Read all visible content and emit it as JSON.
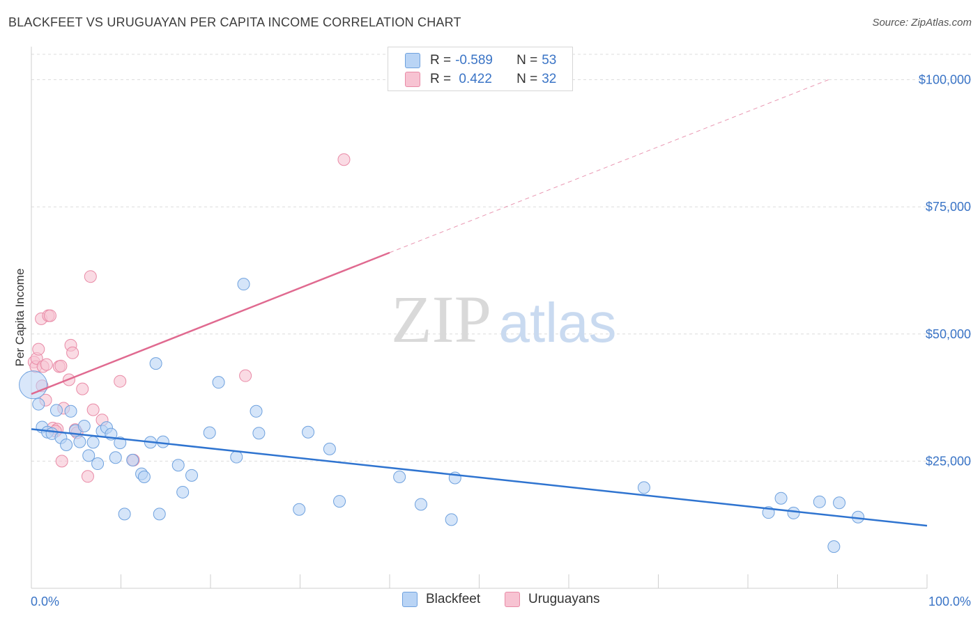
{
  "title": "BLACKFEET VS URUGUAYAN PER CAPITA INCOME CORRELATION CHART",
  "source": "Source: ZipAtlas.com",
  "watermark": {
    "zip": "ZIP",
    "atlas": "atlas"
  },
  "colors": {
    "blue_fill": "#b9d4f5",
    "blue_stroke": "#6ea1de",
    "blue_line": "#2f74d0",
    "pink_fill": "#f7c3d2",
    "pink_stroke": "#e98aa6",
    "pink_line": "#e06a90",
    "axis_text": "#3a74c6",
    "grid": "#dcdcdc"
  },
  "legend": {
    "rows": [
      {
        "r_label": "R = ",
        "r_value": "-0.589",
        "n_label": "N = ",
        "n_value": "53"
      },
      {
        "r_label": "R = ",
        "r_value": " 0.422",
        "n_label": "N = ",
        "n_value": "32"
      }
    ]
  },
  "bottom_legend": {
    "blackfeet": "Blackfeet",
    "uruguayans": "Uruguayans"
  },
  "chart_data": {
    "type": "scatter",
    "title": "BLACKFEET VS URUGUAYAN PER CAPITA INCOME CORRELATION CHART",
    "xlabel": "",
    "ylabel": "Per Capita Income",
    "xlim": [
      0,
      100
    ],
    "ylim": [
      0,
      105000
    ],
    "x_tick_labels": [
      "0.0%",
      "100.0%"
    ],
    "y_ticks": [
      25000,
      50000,
      75000,
      100000
    ],
    "y_tick_labels": [
      "$25,000",
      "$50,000",
      "$75,000",
      "$100,000"
    ],
    "grid": true,
    "legend_position": "top-center",
    "series": [
      {
        "name": "Blackfeet",
        "r": -0.589,
        "n": 53,
        "trend": {
          "x": [
            0,
            100
          ],
          "y": [
            31300,
            12300
          ]
        },
        "points": [
          [
            0.2,
            40000
          ],
          [
            0.8,
            36200
          ],
          [
            1.2,
            31700
          ],
          [
            1.8,
            30700
          ],
          [
            2.3,
            30400
          ],
          [
            2.8,
            35000
          ],
          [
            3.3,
            29600
          ],
          [
            3.9,
            28200
          ],
          [
            4.4,
            34800
          ],
          [
            4.9,
            31000
          ],
          [
            5.4,
            28800
          ],
          [
            5.9,
            31900
          ],
          [
            6.4,
            26100
          ],
          [
            6.9,
            28700
          ],
          [
            7.4,
            24500
          ],
          [
            7.9,
            30900
          ],
          [
            8.4,
            31600
          ],
          [
            8.9,
            30300
          ],
          [
            9.4,
            25700
          ],
          [
            9.9,
            28600
          ],
          [
            10.4,
            14600
          ],
          [
            11.3,
            25200
          ],
          [
            12.3,
            22500
          ],
          [
            12.6,
            21900
          ],
          [
            13.3,
            28700
          ],
          [
            13.9,
            44200
          ],
          [
            14.3,
            14600
          ],
          [
            14.7,
            28800
          ],
          [
            16.4,
            24200
          ],
          [
            16.9,
            18900
          ],
          [
            17.9,
            22200
          ],
          [
            19.9,
            30600
          ],
          [
            20.9,
            40500
          ],
          [
            22.9,
            25800
          ],
          [
            23.7,
            59800
          ],
          [
            25.1,
            34800
          ],
          [
            25.4,
            30500
          ],
          [
            29.9,
            15500
          ],
          [
            30.9,
            30700
          ],
          [
            33.3,
            27400
          ],
          [
            34.4,
            17100
          ],
          [
            41.1,
            21900
          ],
          [
            43.5,
            16500
          ],
          [
            46.9,
            13500
          ],
          [
            47.3,
            21700
          ],
          [
            68.4,
            19800
          ],
          [
            82.3,
            14900
          ],
          [
            83.7,
            17700
          ],
          [
            85.1,
            14800
          ],
          [
            88.0,
            17000
          ],
          [
            89.6,
            8200
          ],
          [
            90.2,
            16800
          ],
          [
            92.3,
            14000
          ]
        ]
      },
      {
        "name": "Uruguayans",
        "r": 0.422,
        "n": 32,
        "trend": {
          "x": [
            0,
            40
          ],
          "y": [
            38200,
            66000
          ]
        },
        "trend_extrapolated": {
          "x": [
            40,
            89
          ],
          "y": [
            66000,
            100000
          ]
        },
        "points": [
          [
            0.3,
            44500
          ],
          [
            0.5,
            43600
          ],
          [
            0.6,
            45200
          ],
          [
            0.8,
            47000
          ],
          [
            1.1,
            53000
          ],
          [
            1.3,
            43600
          ],
          [
            1.6,
            37000
          ],
          [
            1.7,
            44000
          ],
          [
            1.9,
            53600
          ],
          [
            2.1,
            53600
          ],
          [
            2.4,
            31500
          ],
          [
            2.9,
            31300
          ],
          [
            3.1,
            43600
          ],
          [
            3.3,
            43700
          ],
          [
            3.6,
            35400
          ],
          [
            3.4,
            25000
          ],
          [
            4.2,
            41000
          ],
          [
            4.4,
            47800
          ],
          [
            4.6,
            46300
          ],
          [
            4.9,
            31200
          ],
          [
            5.1,
            30600
          ],
          [
            5.7,
            39200
          ],
          [
            6.3,
            22000
          ],
          [
            6.6,
            61300
          ],
          [
            6.9,
            35100
          ],
          [
            7.9,
            33100
          ],
          [
            9.9,
            40700
          ],
          [
            11.4,
            25200
          ],
          [
            23.9,
            41800
          ],
          [
            34.9,
            84300
          ],
          [
            1.2,
            39800
          ],
          [
            2.7,
            30900
          ]
        ]
      }
    ]
  }
}
